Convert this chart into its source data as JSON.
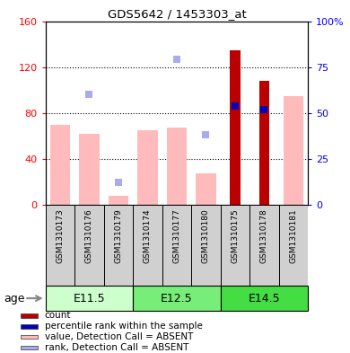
{
  "title": "GDS5642 / 1453303_at",
  "samples": [
    "GSM1310173",
    "GSM1310176",
    "GSM1310179",
    "GSM1310174",
    "GSM1310177",
    "GSM1310180",
    "GSM1310175",
    "GSM1310178",
    "GSM1310181"
  ],
  "age_groups": [
    {
      "label": "E11.5",
      "start": 0,
      "end": 3,
      "color_light": "#ccffcc",
      "color_dark": "#66ee66"
    },
    {
      "label": "E12.5",
      "start": 3,
      "end": 6,
      "color_light": "#88ee88",
      "color_dark": "#44cc44"
    },
    {
      "label": "E14.5",
      "start": 6,
      "end": 9,
      "color_light": "#44cc44",
      "color_dark": "#22aa22"
    }
  ],
  "value_absent": [
    70,
    62,
    8,
    65,
    67,
    27,
    null,
    null,
    95
  ],
  "rank_absent": [
    null,
    60,
    12,
    null,
    79,
    38,
    null,
    null,
    null
  ],
  "count_present": [
    null,
    null,
    null,
    null,
    null,
    null,
    135,
    108,
    null
  ],
  "percentile_present": [
    null,
    null,
    null,
    null,
    null,
    null,
    54,
    52,
    null
  ],
  "ylim_left": [
    0,
    160
  ],
  "ylim_right": [
    0,
    100
  ],
  "yticks_left": [
    0,
    40,
    80,
    120,
    160
  ],
  "yticks_right": [
    0,
    25,
    50,
    75,
    100
  ],
  "yticklabels_right": [
    "0",
    "25",
    "50",
    "75",
    "100%"
  ],
  "color_count": "#bb0000",
  "color_percentile": "#0000bb",
  "color_value_absent": "#ffbbbb",
  "color_rank_absent": "#aaaaee",
  "legend_items": [
    {
      "color": "#bb0000",
      "label": "count"
    },
    {
      "color": "#0000bb",
      "label": "percentile rank within the sample"
    },
    {
      "color": "#ffbbbb",
      "label": "value, Detection Call = ABSENT"
    },
    {
      "color": "#aaaaee",
      "label": "rank, Detection Call = ABSENT"
    }
  ],
  "age_group_colors": [
    "#ccffcc",
    "#77ee77",
    "#44dd44"
  ],
  "gray_box": "#d0d0d0"
}
